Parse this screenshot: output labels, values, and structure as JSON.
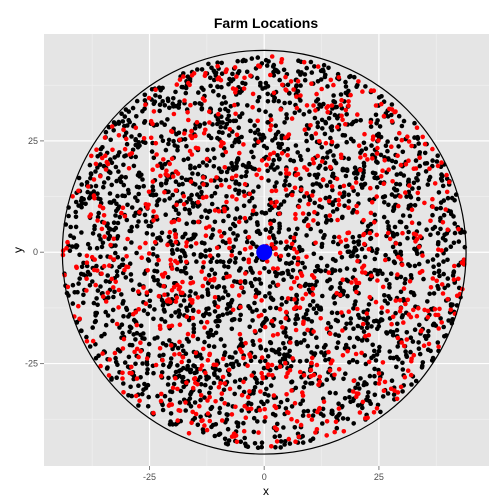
{
  "chart_data": {
    "type": "scatter",
    "title": "Farm Locations",
    "xlabel": "x",
    "ylabel": "y",
    "xlim": [
      -48,
      49
    ],
    "ylim": [
      -48,
      49
    ],
    "x_ticks": [
      -25,
      0,
      25
    ],
    "y_ticks": [
      -25,
      0,
      25
    ],
    "x_tick_labels": [
      "-25",
      "0",
      "25"
    ],
    "y_tick_labels": [
      "-25",
      "0",
      "25"
    ],
    "grid": true,
    "legend": "none",
    "boundary_circle": {
      "center": [
        0,
        0
      ],
      "radius": 44
    },
    "series": [
      {
        "color": "#000000",
        "approx_count": 2400
      },
      {
        "color": "#ff0000",
        "approx_count": 900
      }
    ],
    "center_point": {
      "x": 0,
      "y": 0,
      "color": "#0000ff"
    }
  },
  "colors": {
    "panel_background": "#e5e5e5",
    "grid_major": "#ffffff",
    "grid_minor": "#f2f2f2"
  }
}
